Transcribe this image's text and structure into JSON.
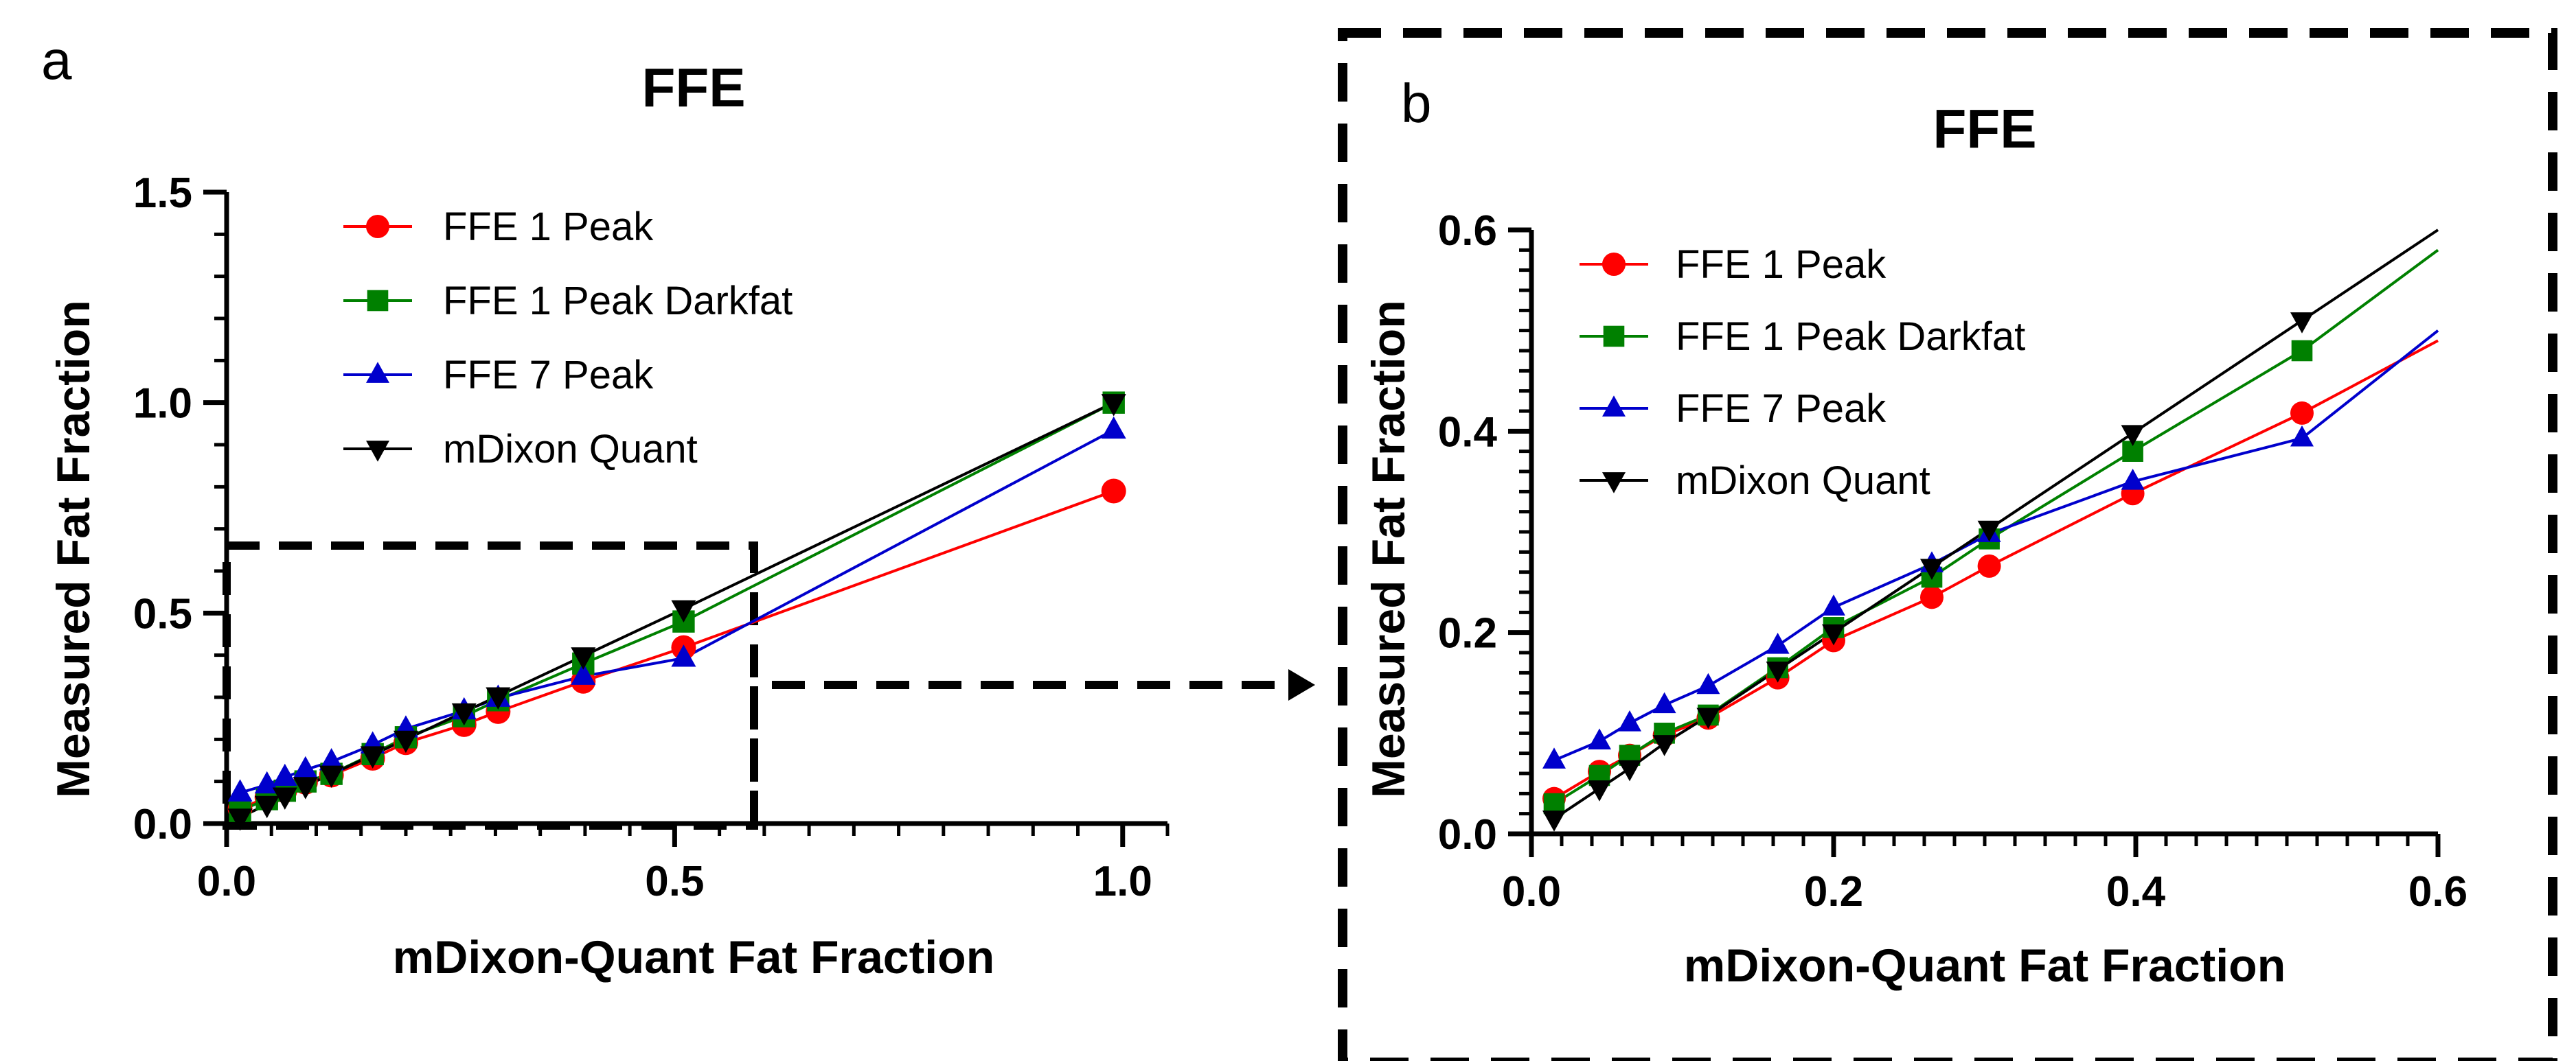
{
  "chart_data": [
    {
      "panel": "a",
      "type": "line",
      "title": "FFE",
      "xlabel": "mDixon-Quant Fat Fraction",
      "ylabel": "Measured Fat Fraction",
      "xlim": [
        0,
        1.05
      ],
      "ylim": [
        0,
        1.5
      ],
      "xticks": [
        0.0,
        0.5,
        1.0
      ],
      "xtick_labels": [
        "0.0",
        "0.5",
        "1.0"
      ],
      "yticks": [
        0.0,
        0.5,
        1.0,
        1.5
      ],
      "ytick_labels": [
        "0.0",
        "0.5",
        "1.0",
        "1.5"
      ],
      "zoom_region": {
        "x": [
          0,
          0.57
        ],
        "y": [
          0,
          0.65
        ]
      },
      "x": [
        0.015,
        0.045,
        0.065,
        0.088,
        0.117,
        0.163,
        0.2,
        0.265,
        0.303,
        0.398,
        0.51,
        0.99
      ],
      "series": [
        {
          "name": "FFE 1 Peak",
          "marker": "circle",
          "values": [
            0.035,
            0.062,
            0.078,
            0.098,
            0.115,
            0.155,
            0.192,
            0.235,
            0.266,
            0.338,
            0.418,
            0.79
          ]
        },
        {
          "name": "FFE 1 Peak Darkfat",
          "marker": "square",
          "values": [
            0.03,
            0.058,
            0.078,
            0.1,
            0.118,
            0.165,
            0.205,
            0.255,
            0.293,
            0.38,
            0.48,
            1.0
          ]
        },
        {
          "name": "FFE 7 Peak",
          "marker": "triangle-up",
          "values": [
            0.073,
            0.092,
            0.11,
            0.128,
            0.147,
            0.187,
            0.225,
            0.268,
            0.298,
            0.35,
            0.393,
            0.935
          ]
        },
        {
          "name": "mDixon Quant",
          "marker": "triangle-down",
          "values": [
            0.015,
            0.045,
            0.065,
            0.09,
            0.117,
            0.163,
            0.2,
            0.265,
            0.303,
            0.398,
            0.51,
            1.0
          ]
        }
      ]
    },
    {
      "panel": "b",
      "type": "line",
      "title": "FFE",
      "xlabel": "mDixon-Quant Fat Fraction",
      "ylabel": "Measured Fat Fraction",
      "xlim": [
        0,
        0.6
      ],
      "ylim": [
        0,
        0.6
      ],
      "xticks": [
        0.0,
        0.2,
        0.4,
        0.6
      ],
      "xtick_labels": [
        "0.0",
        "0.2",
        "0.4",
        "0.6"
      ],
      "yticks": [
        0.0,
        0.2,
        0.4,
        0.6
      ],
      "ytick_labels": [
        "0.0",
        "0.2",
        "0.4",
        "0.6"
      ],
      "x": [
        0.015,
        0.045,
        0.065,
        0.088,
        0.117,
        0.163,
        0.2,
        0.265,
        0.303,
        0.398,
        0.51
      ],
      "line_end": {
        "x": 0.6,
        "values": [
          0.49,
          0.58,
          0.5,
          0.6
        ]
      },
      "series": [
        {
          "name": "FFE 1 Peak",
          "marker": "circle",
          "values": [
            0.035,
            0.062,
            0.078,
            0.098,
            0.115,
            0.155,
            0.192,
            0.235,
            0.266,
            0.338,
            0.418
          ]
        },
        {
          "name": "FFE 1 Peak Darkfat",
          "marker": "square",
          "values": [
            0.03,
            0.058,
            0.078,
            0.1,
            0.118,
            0.165,
            0.205,
            0.255,
            0.293,
            0.38,
            0.48
          ]
        },
        {
          "name": "FFE 7 Peak",
          "marker": "triangle-up",
          "values": [
            0.073,
            0.092,
            0.11,
            0.128,
            0.147,
            0.187,
            0.225,
            0.268,
            0.298,
            0.35,
            0.393
          ]
        },
        {
          "name": "mDixon Quant",
          "marker": "triangle-down",
          "values": [
            0.015,
            0.045,
            0.065,
            0.09,
            0.117,
            0.163,
            0.2,
            0.265,
            0.303,
            0.398,
            0.51
          ]
        }
      ]
    }
  ],
  "colors": {
    "FFE 1 Peak": "#ff0000",
    "FFE 1 Peak Darkfat": "#008000",
    "FFE 7 Peak": "#0000cc",
    "mDixon Quant": "#000000"
  }
}
